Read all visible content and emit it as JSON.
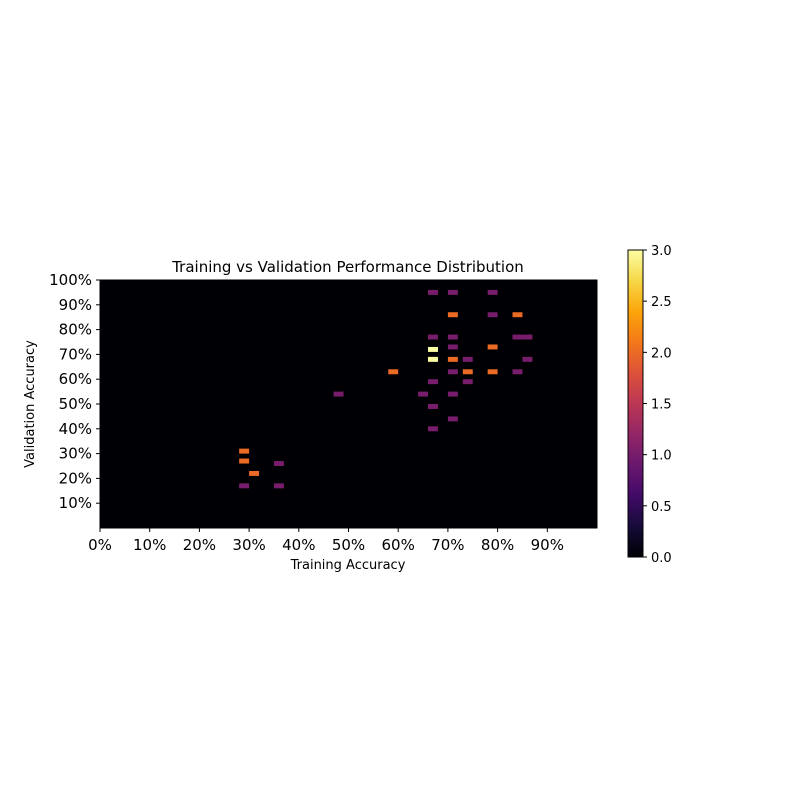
{
  "chart_data": {
    "type": "heatmap",
    "title": "Training vs Validation Performance Distribution",
    "xlabel": "Training Accuracy",
    "ylabel": "Validation Accuracy",
    "xlim": [
      0,
      100
    ],
    "ylim": [
      0,
      100
    ],
    "bin_width": 2,
    "x_ticks": [
      0,
      10,
      20,
      30,
      40,
      50,
      60,
      70,
      80,
      90
    ],
    "x_tick_labels": [
      "0%",
      "10%",
      "20%",
      "30%",
      "40%",
      "50%",
      "60%",
      "70%",
      "80%",
      "90%"
    ],
    "y_ticks": [
      10,
      20,
      30,
      40,
      50,
      60,
      70,
      80,
      90,
      100
    ],
    "y_tick_labels": [
      "10%",
      "20%",
      "30%",
      "40%",
      "50%",
      "60%",
      "70%",
      "80%",
      "90%",
      "100%"
    ],
    "colormap": "inferno",
    "colorbar": {
      "range": [
        0,
        3
      ],
      "ticks": [
        0,
        0.5,
        1,
        1.5,
        2,
        2.5,
        3
      ],
      "tick_labels": [
        "0.0",
        "0.5",
        "1.0",
        "1.5",
        "2.0",
        "2.5",
        "3.0"
      ]
    },
    "cells_note": "[training_pct, validation_pct, count]",
    "cells": [
      [
        67,
        95,
        1
      ],
      [
        71,
        95,
        1
      ],
      [
        79,
        95,
        1
      ],
      [
        71,
        86,
        2
      ],
      [
        79,
        86,
        1
      ],
      [
        84,
        86,
        2
      ],
      [
        67,
        77,
        1
      ],
      [
        71,
        77,
        1
      ],
      [
        84,
        77,
        1
      ],
      [
        86,
        77,
        1
      ],
      [
        71,
        73,
        1
      ],
      [
        79,
        73,
        2
      ],
      [
        67,
        72,
        3
      ],
      [
        67,
        68,
        3
      ],
      [
        71,
        68,
        2
      ],
      [
        74,
        68,
        1
      ],
      [
        86,
        68,
        1
      ],
      [
        59,
        63,
        2
      ],
      [
        71,
        63,
        1
      ],
      [
        74,
        63,
        2
      ],
      [
        79,
        63,
        2
      ],
      [
        84,
        63,
        1
      ],
      [
        67,
        59,
        1
      ],
      [
        74,
        59,
        1
      ],
      [
        48,
        54,
        1
      ],
      [
        65,
        54,
        1
      ],
      [
        71,
        54,
        1
      ],
      [
        67,
        49,
        1
      ],
      [
        71,
        44,
        1
      ],
      [
        67,
        40,
        1
      ],
      [
        29,
        31,
        2
      ],
      [
        29,
        27,
        2
      ],
      [
        36,
        26,
        1
      ],
      [
        31,
        22,
        2
      ],
      [
        29,
        17,
        1
      ],
      [
        36,
        17,
        1
      ]
    ]
  }
}
